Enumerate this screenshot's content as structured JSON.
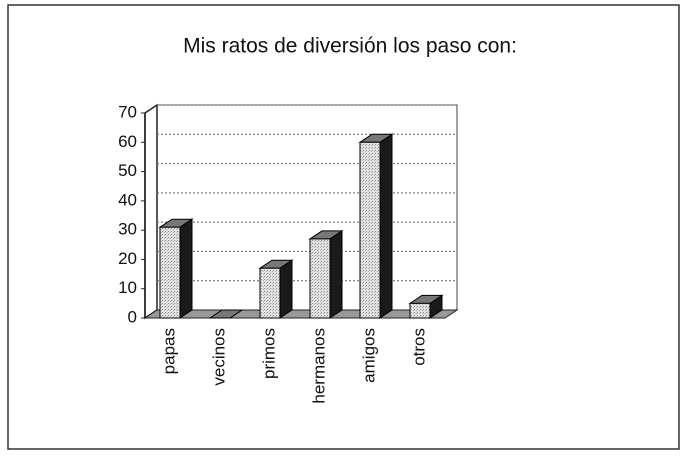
{
  "chart_data": {
    "type": "bar3d",
    "title": "Mis ratos de diversión los paso con:",
    "categories": [
      "papas",
      "vecinos",
      "primos",
      "hermanos",
      "amigos",
      "otros"
    ],
    "values": [
      31,
      0,
      17,
      27,
      60,
      5
    ],
    "color": "#d4d4d4",
    "ylim": [
      0,
      70
    ],
    "yticks": [
      0,
      10,
      20,
      30,
      40,
      50,
      60,
      70
    ],
    "grid": true
  }
}
